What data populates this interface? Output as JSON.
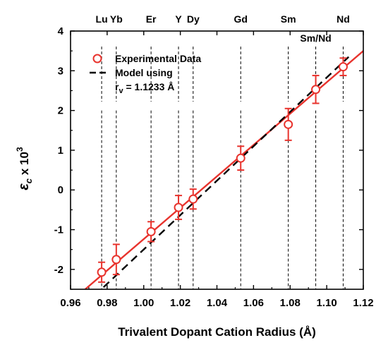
{
  "chart_data": {
    "type": "scatter",
    "xlabel": "Trivalent Dopant Cation Radius (Å)",
    "ylabel": {
      "symbol": "ε",
      "sub": "c",
      "mid": " x 10",
      "sup": "3"
    },
    "xlim": [
      0.96,
      1.12
    ],
    "ylim": [
      -2.5,
      4
    ],
    "xticks": [
      "0.96",
      "0.98",
      "1.00",
      "1.02",
      "1.04",
      "1.06",
      "1.08",
      "1.10",
      "1.12"
    ],
    "yticks": [
      "-2",
      "-1",
      "0",
      "1",
      "2",
      "3",
      "4"
    ],
    "grid": false,
    "legend_position": "top-left",
    "series": [
      {
        "name": "Experimental Data",
        "kind": "points-with-error-bars",
        "color": "#e8332d",
        "x": [
          0.977,
          0.985,
          1.004,
          1.019,
          1.027,
          1.053,
          1.079,
          1.094,
          1.109
        ],
        "y": [
          -2.07,
          -1.75,
          -1.05,
          -0.44,
          -0.23,
          0.8,
          1.65,
          2.53,
          3.1
        ],
        "yerr": [
          0.25,
          0.38,
          0.25,
          0.3,
          0.25,
          0.3,
          0.4,
          0.35,
          0.22
        ]
      },
      {
        "name": "Model using",
        "name_line2": {
          "base": "r",
          "sub": "v",
          "rest": " = 1.1233 Å"
        },
        "kind": "dashed-line",
        "color": "#000000",
        "x": [
          0.978,
          1.112
        ],
        "y": [
          -2.45,
          3.35
        ]
      },
      {
        "kind": "fit-line",
        "color": "#e8332d",
        "x": [
          0.968,
          1.12
        ],
        "y": [
          -2.5,
          3.5
        ]
      }
    ],
    "reference_lines": [
      {
        "label": "Lu",
        "x": 0.977,
        "label_top": true
      },
      {
        "label": "Yb",
        "x": 0.985,
        "label_top": true
      },
      {
        "label": "Er",
        "x": 1.004,
        "label_top": true
      },
      {
        "label": "Y",
        "x": 1.019,
        "label_top": true
      },
      {
        "label": "Dy",
        "x": 1.027,
        "label_top": true
      },
      {
        "label": "Gd",
        "x": 1.053,
        "label_top": true
      },
      {
        "label": "Sm",
        "x": 1.079,
        "label_top": true
      },
      {
        "label": "Sm/Nd",
        "x": 1.094,
        "label_top": false
      },
      {
        "label": "Nd",
        "x": 1.109,
        "label_top": true
      }
    ],
    "colors": {
      "experimental": "#e8332d",
      "model": "#000000",
      "fit": "#e8332d"
    }
  }
}
